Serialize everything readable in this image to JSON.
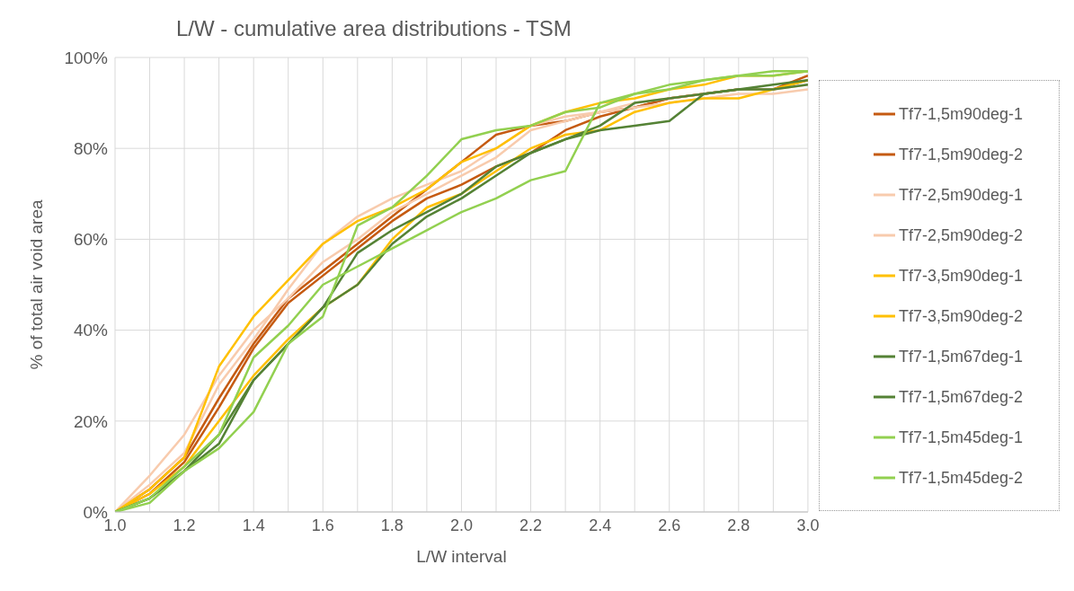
{
  "chart_data": {
    "type": "line",
    "title": "L/W - cumulative area distributions - TSM",
    "xlabel": "L/W interval",
    "ylabel": "% of total air void area",
    "x": [
      1.0,
      1.1,
      1.2,
      1.3,
      1.4,
      1.5,
      1.6,
      1.7,
      1.8,
      1.9,
      2.0,
      2.1,
      2.2,
      2.3,
      2.4,
      2.5,
      2.6,
      2.7,
      2.8,
      2.9,
      3.0
    ],
    "xlim": [
      1.0,
      3.0
    ],
    "xticks": [
      {
        "value": 1.0,
        "label": "1.0"
      },
      {
        "value": 1.1,
        "label": null
      },
      {
        "value": 1.2,
        "label": "1.2"
      },
      {
        "value": 1.3,
        "label": null
      },
      {
        "value": 1.4,
        "label": "1.4"
      },
      {
        "value": 1.5,
        "label": null
      },
      {
        "value": 1.6,
        "label": "1.6"
      },
      {
        "value": 1.7,
        "label": null
      },
      {
        "value": 1.8,
        "label": "1.8"
      },
      {
        "value": 1.9,
        "label": null
      },
      {
        "value": 2.0,
        "label": "2.0"
      },
      {
        "value": 2.1,
        "label": null
      },
      {
        "value": 2.2,
        "label": "2.2"
      },
      {
        "value": 2.3,
        "label": null
      },
      {
        "value": 2.4,
        "label": "2.4"
      },
      {
        "value": 2.5,
        "label": null
      },
      {
        "value": 2.6,
        "label": "2.6"
      },
      {
        "value": 2.7,
        "label": null
      },
      {
        "value": 2.8,
        "label": "2.8"
      },
      {
        "value": 2.9,
        "label": null
      },
      {
        "value": 3.0,
        "label": "3.0"
      }
    ],
    "ylim": [
      0,
      100
    ],
    "yticks": [
      {
        "value": 0,
        "label": "0%"
      },
      {
        "value": 20,
        "label": "20%"
      },
      {
        "value": 40,
        "label": "40%"
      },
      {
        "value": 60,
        "label": "60%"
      },
      {
        "value": 80,
        "label": "80%"
      },
      {
        "value": 100,
        "label": "100%"
      }
    ],
    "grid": true,
    "legend": "right",
    "marker": "none",
    "line_style": "solid",
    "series": [
      {
        "name": "Tf7-1,5m90deg-1",
        "color": "#c55a11",
        "values": [
          0,
          5,
          12,
          25,
          37,
          47,
          53,
          59,
          65,
          71,
          77,
          83,
          85,
          86,
          88,
          89,
          91,
          92,
          93,
          93,
          95
        ]
      },
      {
        "name": "Tf7-1,5m90deg-2",
        "color": "#c55a11",
        "values": [
          0,
          4,
          11,
          23,
          36,
          46,
          52,
          58,
          64,
          69,
          72,
          76,
          79,
          84,
          87,
          89,
          91,
          92,
          93,
          93,
          96
        ]
      },
      {
        "name": "Tf7-2,5m90deg-1",
        "color": "#f8cbad",
        "values": [
          0,
          8,
          17,
          30,
          40,
          47,
          55,
          60,
          66,
          70,
          74,
          78,
          84,
          86,
          88,
          90,
          91,
          92,
          93,
          93,
          94
        ]
      },
      {
        "name": "Tf7-2,5m90deg-2",
        "color": "#f8cbad",
        "values": [
          0,
          6,
          13,
          28,
          38,
          49,
          59,
          65,
          69,
          72,
          75,
          80,
          85,
          87,
          88,
          89,
          90,
          91,
          92,
          92,
          93
        ]
      },
      {
        "name": "Tf7-3,5m90deg-1",
        "color": "#ffc000",
        "values": [
          0,
          5,
          12,
          32,
          43,
          51,
          59,
          64,
          67,
          71,
          77,
          80,
          85,
          88,
          90,
          91,
          93,
          94,
          96,
          96,
          97
        ]
      },
      {
        "name": "Tf7-3,5m90deg-2",
        "color": "#ffc000",
        "values": [
          0,
          4,
          10,
          20,
          30,
          38,
          45,
          50,
          60,
          67,
          70,
          75,
          80,
          83,
          84,
          88,
          90,
          91,
          91,
          93,
          95
        ]
      },
      {
        "name": "Tf7-1,5m67deg-1",
        "color": "#548235",
        "values": [
          0,
          3,
          9,
          17,
          29,
          37,
          45,
          57,
          62,
          66,
          70,
          76,
          79,
          82,
          85,
          90,
          91,
          92,
          93,
          93,
          94
        ]
      },
      {
        "name": "Tf7-1,5m67deg-2",
        "color": "#548235",
        "values": [
          0,
          3,
          9,
          15,
          29,
          37,
          45,
          50,
          59,
          65,
          69,
          74,
          79,
          82,
          84,
          85,
          86,
          92,
          93,
          94,
          95
        ]
      },
      {
        "name": "Tf7-1,5m45deg-1",
        "color": "#92d050",
        "values": [
          0,
          3,
          10,
          17,
          34,
          41,
          50,
          54,
          58,
          62,
          66,
          69,
          73,
          75,
          90,
          92,
          93,
          95,
          96,
          97,
          97
        ]
      },
      {
        "name": "Tf7-1,5m45deg-2",
        "color": "#92d050",
        "values": [
          0,
          2,
          9,
          14,
          22,
          37,
          43,
          63,
          67,
          74,
          82,
          84,
          85,
          88,
          89,
          92,
          94,
          95,
          96,
          96,
          97
        ]
      }
    ]
  }
}
